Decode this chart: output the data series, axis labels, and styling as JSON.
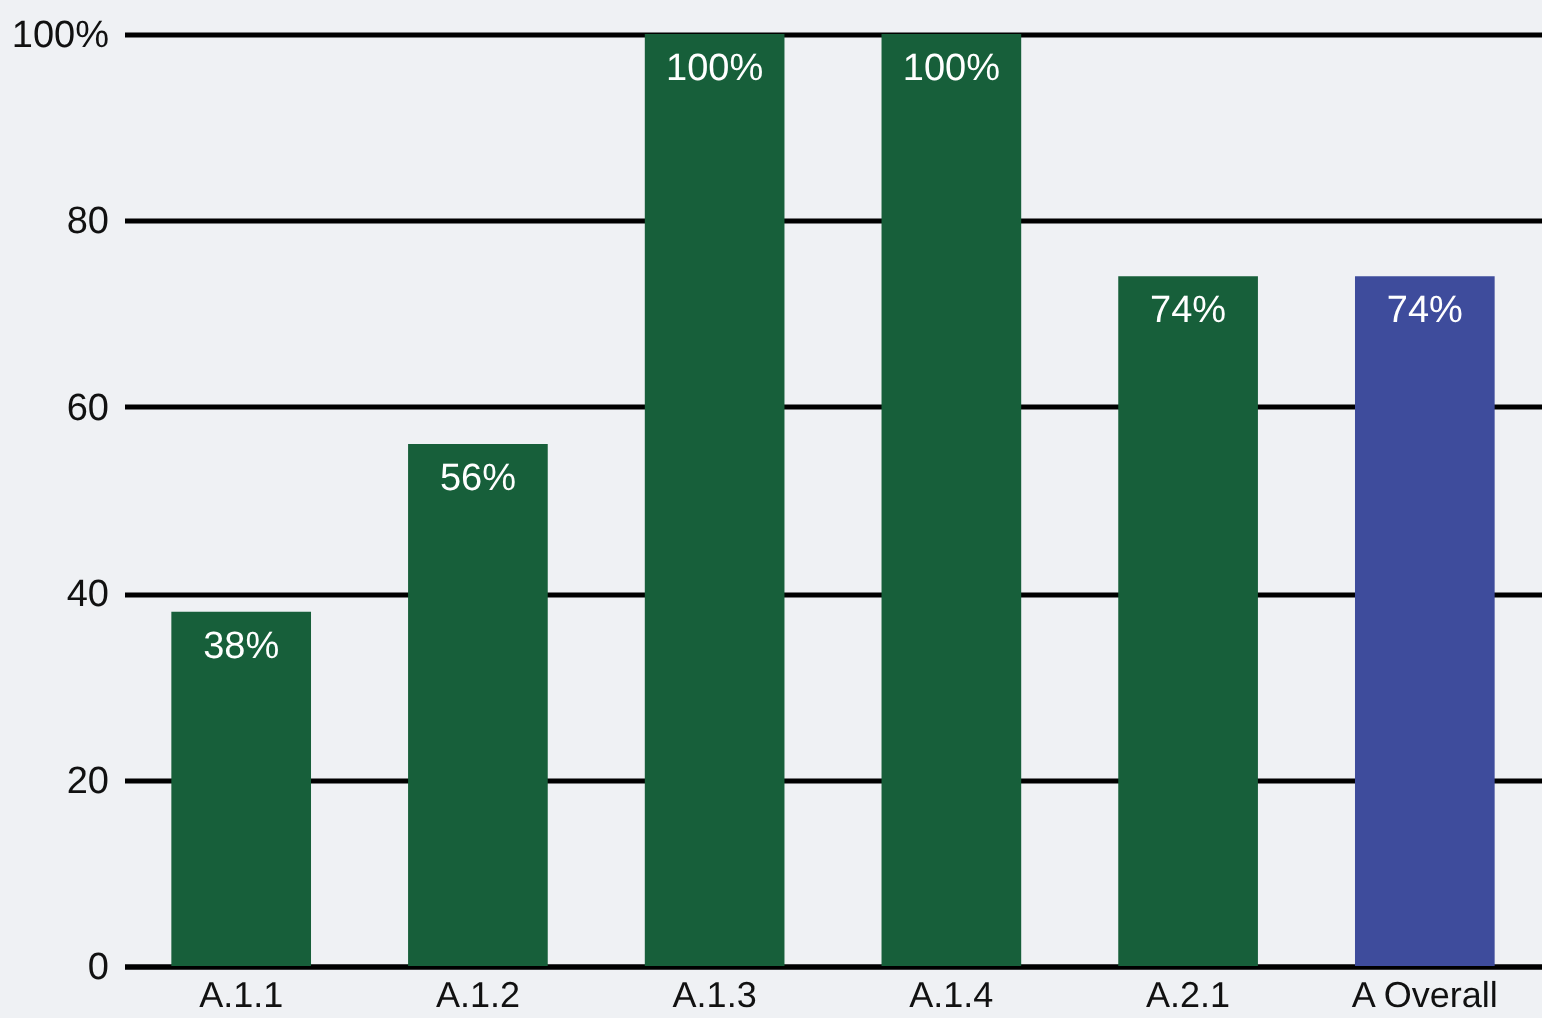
{
  "chart_data": {
    "type": "bar",
    "categories": [
      "A.1.1",
      "A.1.2",
      "A.1.3",
      "A.1.4",
      "A.2.1",
      "A Overall"
    ],
    "values": [
      38,
      56,
      100,
      100,
      74,
      74
    ],
    "colors": [
      "#175f3a",
      "#175f3a",
      "#175f3a",
      "#175f3a",
      "#175f3a",
      "#3e4c9c"
    ],
    "value_labels": [
      "38%",
      "56%",
      "100%",
      "100%",
      "74%",
      "74%"
    ],
    "ylim": [
      0,
      100
    ],
    "yticks": [
      0,
      20,
      40,
      60,
      80,
      {
        "value": 100,
        "label": "100%"
      }
    ],
    "grid": "y"
  }
}
